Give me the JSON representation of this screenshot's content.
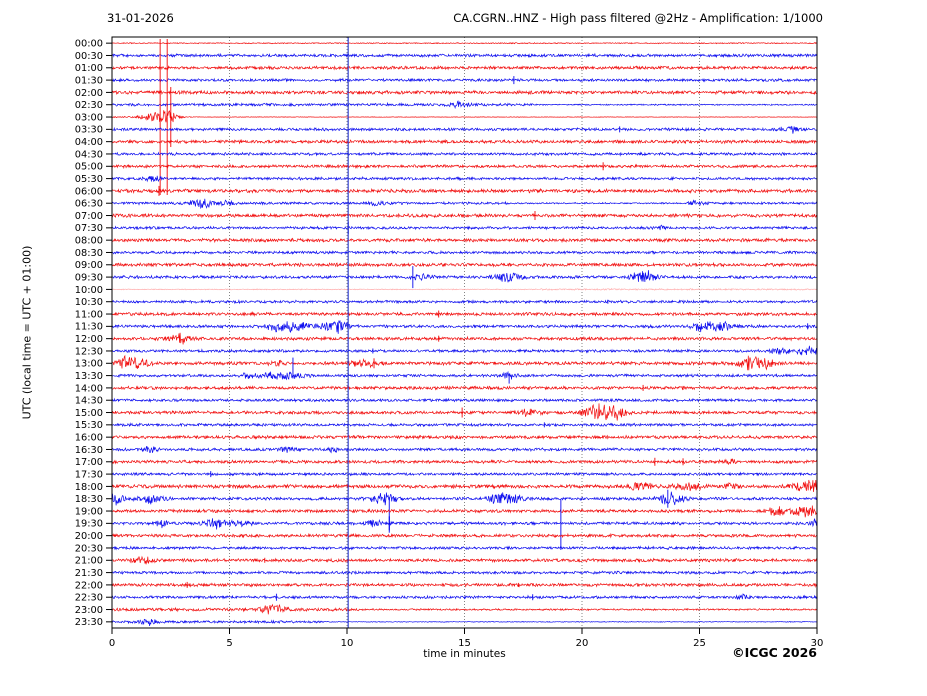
{
  "header": {
    "date": "31-01-2026",
    "title": "CA.CGRN..HNZ - High pass filtered @2Hz - Amplification: 1/1000"
  },
  "footer": {
    "copyright": "©ICGC 2026"
  },
  "chart_data": {
    "type": "line",
    "subtype": "seismogram-helicorder-day-plot",
    "title": "CA.CGRN..HNZ - High pass filtered @2Hz - Amplification: 1/1000",
    "date": "31-01-2026",
    "xlabel": "time in minutes",
    "ylabel": "UTC (local time = UTC + 01:00)",
    "xlim": [
      0,
      30
    ],
    "x_ticks": [
      0,
      5,
      10,
      15,
      20,
      25,
      30
    ],
    "grid": {
      "x_dotted": [
        5,
        10,
        15,
        20,
        25
      ],
      "color": "#666666"
    },
    "marker_line": {
      "x": 10.05,
      "color": "#2233cc"
    },
    "colors": {
      "red": "#f00000",
      "blue": "#0000ee",
      "axis": "#000000"
    },
    "minutes_per_row": 30,
    "legend_position": "none",
    "rows": [
      {
        "label": "00:00",
        "color": "red",
        "amp": 0.5,
        "events": []
      },
      {
        "label": "00:30",
        "color": "blue",
        "amp": 1.4,
        "events": []
      },
      {
        "label": "01:00",
        "color": "red",
        "amp": 1.5,
        "events": []
      },
      {
        "label": "01:30",
        "color": "blue",
        "amp": 1.3,
        "events": [
          [
            "s",
            17.1,
            4
          ]
        ]
      },
      {
        "label": "02:00",
        "color": "red",
        "amp": 1.6,
        "events": []
      },
      {
        "label": "02:30",
        "color": "blue",
        "amp": 1.3,
        "seg": [
          [
            18,
            30,
            0.5
          ]
        ],
        "events": [
          [
            "b",
            14.8,
            2.5,
            0.4
          ]
        ]
      },
      {
        "label": "03:00",
        "color": "red",
        "amp": 1.0,
        "seg": [
          [
            0,
            1.4,
            0.55
          ],
          [
            2.7,
            30,
            0.22
          ]
        ],
        "events": [
          [
            "b",
            1.9,
            3,
            0.8
          ],
          [
            "b",
            2.3,
            5,
            0.4
          ],
          [
            "s",
            2.05,
            78
          ],
          [
            "s",
            2.35,
            78
          ],
          [
            "s",
            2.5,
            30
          ]
        ]
      },
      {
        "label": "03:30",
        "color": "blue",
        "amp": 1.3,
        "events": [
          [
            "s",
            21.6,
            3
          ],
          [
            "b",
            28.9,
            3,
            0.4
          ]
        ]
      },
      {
        "label": "04:00",
        "color": "red",
        "amp": 1.5,
        "events": []
      },
      {
        "label": "04:30",
        "color": "blue",
        "amp": 1.3,
        "events": []
      },
      {
        "label": "05:00",
        "color": "red",
        "amp": 1.4,
        "events": [
          [
            "s",
            20.9,
            4
          ]
        ]
      },
      {
        "label": "05:30",
        "color": "blue",
        "amp": 1.3,
        "events": [
          [
            "b",
            1.7,
            3.5,
            0.3
          ]
        ]
      },
      {
        "label": "06:00",
        "color": "red",
        "amp": 1.7,
        "events": [
          [
            "s",
            2.0,
            5
          ]
        ]
      },
      {
        "label": "06:30",
        "color": "blue",
        "amp": 1.2,
        "seg": [
          [
            17,
            24.5,
            0.6
          ]
        ],
        "events": [
          [
            "b",
            3.85,
            4,
            0.5
          ],
          [
            "b",
            4.9,
            2,
            0.3
          ],
          [
            "b",
            11.3,
            2,
            0.3
          ],
          [
            "b",
            24.9,
            2,
            0.3
          ]
        ]
      },
      {
        "label": "07:00",
        "color": "red",
        "amp": 1.6,
        "events": [
          [
            "s",
            18.0,
            4.5
          ]
        ]
      },
      {
        "label": "07:30",
        "color": "blue",
        "amp": 1.3,
        "events": [
          [
            "s",
            10.05,
            6
          ],
          [
            "b",
            23.3,
            1.8,
            0.3
          ]
        ]
      },
      {
        "label": "08:00",
        "color": "red",
        "amp": 1.6,
        "events": []
      },
      {
        "label": "08:30",
        "color": "blue",
        "amp": 1.3,
        "events": []
      },
      {
        "label": "09:00",
        "color": "red",
        "amp": 1.6,
        "events": []
      },
      {
        "label": "09:30",
        "color": "blue",
        "amp": 1.4,
        "events": [
          [
            "s",
            12.8,
            11
          ],
          [
            "b",
            13.2,
            2.5,
            0.4
          ],
          [
            "b",
            16.85,
            5,
            0.5
          ],
          [
            "b",
            22.4,
            3,
            0.4
          ],
          [
            "b",
            22.75,
            3.5,
            0.4
          ],
          [
            "b",
            23.0,
            2,
            0.3
          ]
        ]
      },
      {
        "label": "10:00",
        "color": "red",
        "amp": 0.45,
        "color_hex": "#ffaaaa",
        "seg": [
          [
            18,
            30,
            1.6
          ]
        ],
        "events": []
      },
      {
        "label": "10:30",
        "color": "blue",
        "amp": 1.3,
        "events": [
          [
            "s",
            21.1,
            2
          ]
        ]
      },
      {
        "label": "11:00",
        "color": "red",
        "amp": 1.5,
        "events": [
          [
            "s",
            13.9,
            3.5
          ]
        ]
      },
      {
        "label": "11:30",
        "color": "blue",
        "amp": 1.4,
        "events": [
          [
            "b",
            6.9,
            3,
            0.3
          ],
          [
            "b",
            7.6,
            5,
            0.7
          ],
          [
            "b",
            9.5,
            6,
            0.6
          ],
          [
            "b",
            24.95,
            3,
            0.3
          ],
          [
            "b",
            25.75,
            4.5,
            0.6
          ],
          [
            "s",
            29.6,
            3
          ]
        ]
      },
      {
        "label": "12:00",
        "color": "red",
        "amp": 1.5,
        "events": [
          [
            "b",
            2.9,
            4,
            0.5
          ],
          [
            "s",
            13.9,
            3
          ]
        ]
      },
      {
        "label": "12:30",
        "color": "blue",
        "amp": 1.3,
        "events": [
          [
            "s",
            11.1,
            2.5
          ],
          [
            "b",
            28.45,
            3,
            0.4
          ],
          [
            "b",
            29.55,
            4,
            0.5
          ]
        ]
      },
      {
        "label": "13:00",
        "color": "red",
        "amp": 1.6,
        "events": [
          [
            "b",
            0.5,
            3,
            0.4
          ],
          [
            "b",
            1.0,
            5,
            0.5
          ],
          [
            "b",
            7.0,
            2.5,
            0.3
          ],
          [
            "b",
            10.7,
            3,
            0.5
          ],
          [
            "s",
            11.15,
            5
          ],
          [
            "b",
            27.0,
            3.5,
            0.4
          ],
          [
            "b",
            27.6,
            5,
            0.6
          ]
        ]
      },
      {
        "label": "13:30",
        "color": "blue",
        "amp": 1.3,
        "events": [
          [
            "b",
            5.8,
            2.5,
            0.4
          ],
          [
            "b",
            6.85,
            3,
            0.4
          ],
          [
            "s",
            7.7,
            18,
            "up"
          ],
          [
            "b",
            7.7,
            3,
            0.5
          ],
          [
            "s",
            16.9,
            8,
            "down"
          ],
          [
            "b",
            16.9,
            2.5,
            0.3
          ]
        ]
      },
      {
        "label": "14:00",
        "color": "red",
        "amp": 1.5,
        "events": [
          [
            "s",
            22.6,
            3
          ],
          [
            "s",
            24.3,
            2
          ]
        ]
      },
      {
        "label": "14:30",
        "color": "blue",
        "amp": 1.3,
        "events": []
      },
      {
        "label": "15:00",
        "color": "red",
        "amp": 1.5,
        "events": [
          [
            "s",
            14.9,
            5
          ],
          [
            "b",
            17.75,
            3,
            0.4
          ],
          [
            "b",
            20.85,
            7,
            0.7
          ],
          [
            "b",
            21.4,
            3,
            0.4
          ]
        ]
      },
      {
        "label": "15:30",
        "color": "blue",
        "amp": 1.3,
        "events": [
          [
            "s",
            18.4,
            2.5
          ]
        ]
      },
      {
        "label": "16:00",
        "color": "red",
        "amp": 1.5,
        "events": []
      },
      {
        "label": "16:30",
        "color": "blue",
        "amp": 1.4,
        "events": [
          [
            "b",
            1.6,
            2.5,
            0.3
          ],
          [
            "b",
            7.4,
            2,
            0.3
          ],
          [
            "b",
            9.5,
            2,
            0.3
          ]
        ]
      },
      {
        "label": "17:00",
        "color": "red",
        "amp": 1.5,
        "events": [
          [
            "s",
            23.1,
            4
          ],
          [
            "s",
            24.3,
            3.5
          ],
          [
            "b",
            26.3,
            2,
            0.3
          ]
        ]
      },
      {
        "label": "17:30",
        "color": "blue",
        "amp": 1.3,
        "events": [
          [
            "s",
            4.2,
            3
          ]
        ]
      },
      {
        "label": "18:00",
        "color": "red",
        "amp": 1.7,
        "events": [
          [
            "b",
            22.5,
            4,
            0.5
          ],
          [
            "b",
            24.5,
            4,
            0.5
          ],
          [
            "b",
            26.3,
            2,
            0.3
          ],
          [
            "b",
            29.7,
            6,
            0.6
          ]
        ]
      },
      {
        "label": "18:30",
        "color": "blue",
        "amp": 1.4,
        "events": [
          [
            "b",
            0.15,
            5,
            0.3
          ],
          [
            "b",
            1.65,
            5,
            0.5
          ],
          [
            "b",
            11.3,
            3.5,
            0.4
          ],
          [
            "b",
            11.75,
            4,
            0.4
          ],
          [
            "s",
            11.8,
            34,
            "down"
          ],
          [
            "b",
            16.5,
            5,
            0.4
          ],
          [
            "b",
            17.05,
            5,
            0.4
          ],
          [
            "b",
            23.8,
            6,
            0.5
          ],
          [
            "s",
            23.65,
            9
          ]
        ]
      },
      {
        "label": "19:00",
        "color": "red",
        "amp": 1.5,
        "events": [
          [
            "b",
            28.3,
            4,
            0.4
          ],
          [
            "b",
            29.5,
            5,
            0.5
          ]
        ]
      },
      {
        "label": "19:30",
        "color": "blue",
        "amp": 1.4,
        "events": [
          [
            "b",
            2.15,
            3,
            0.3
          ],
          [
            "b",
            4.4,
            4,
            0.5
          ],
          [
            "b",
            5.55,
            3,
            0.4
          ],
          [
            "b",
            11.2,
            3,
            0.4
          ],
          [
            "s",
            11.8,
            7
          ],
          [
            "s",
            19.1,
            24
          ],
          [
            "b",
            29.9,
            3,
            0.2
          ]
        ]
      },
      {
        "label": "20:00",
        "color": "red",
        "amp": 1.5,
        "events": []
      },
      {
        "label": "20:30",
        "color": "blue",
        "amp": 1.3,
        "events": [
          [
            "s",
            19.1,
            2
          ]
        ]
      },
      {
        "label": "21:00",
        "color": "red",
        "amp": 1.5,
        "events": [
          [
            "b",
            1.35,
            3.5,
            0.4
          ],
          [
            "s",
            6.5,
            2.5
          ]
        ]
      },
      {
        "label": "21:30",
        "color": "blue",
        "amp": 1.3,
        "events": []
      },
      {
        "label": "22:00",
        "color": "red",
        "amp": 1.5,
        "events": [
          [
            "s",
            3.2,
            3
          ],
          [
            "s",
            17.3,
            2
          ]
        ]
      },
      {
        "label": "22:30",
        "color": "blue",
        "amp": 1.3,
        "events": [
          [
            "s",
            7.0,
            3.5
          ],
          [
            "s",
            17.9,
            3
          ],
          [
            "b",
            26.9,
            2,
            0.3
          ]
        ]
      },
      {
        "label": "23:00",
        "color": "red",
        "amp": 1.5,
        "seg": [
          [
            10.6,
            30,
            0.55
          ]
        ],
        "events": [
          [
            "b",
            6.6,
            2.5,
            0.3
          ],
          [
            "b",
            7.1,
            3,
            0.4
          ]
        ]
      },
      {
        "label": "23:30",
        "color": "blue",
        "amp": 1.2,
        "seg": [
          [
            9,
            30,
            0.3
          ]
        ],
        "events": [
          [
            "b",
            1.6,
            2.5,
            0.4
          ]
        ]
      }
    ]
  }
}
